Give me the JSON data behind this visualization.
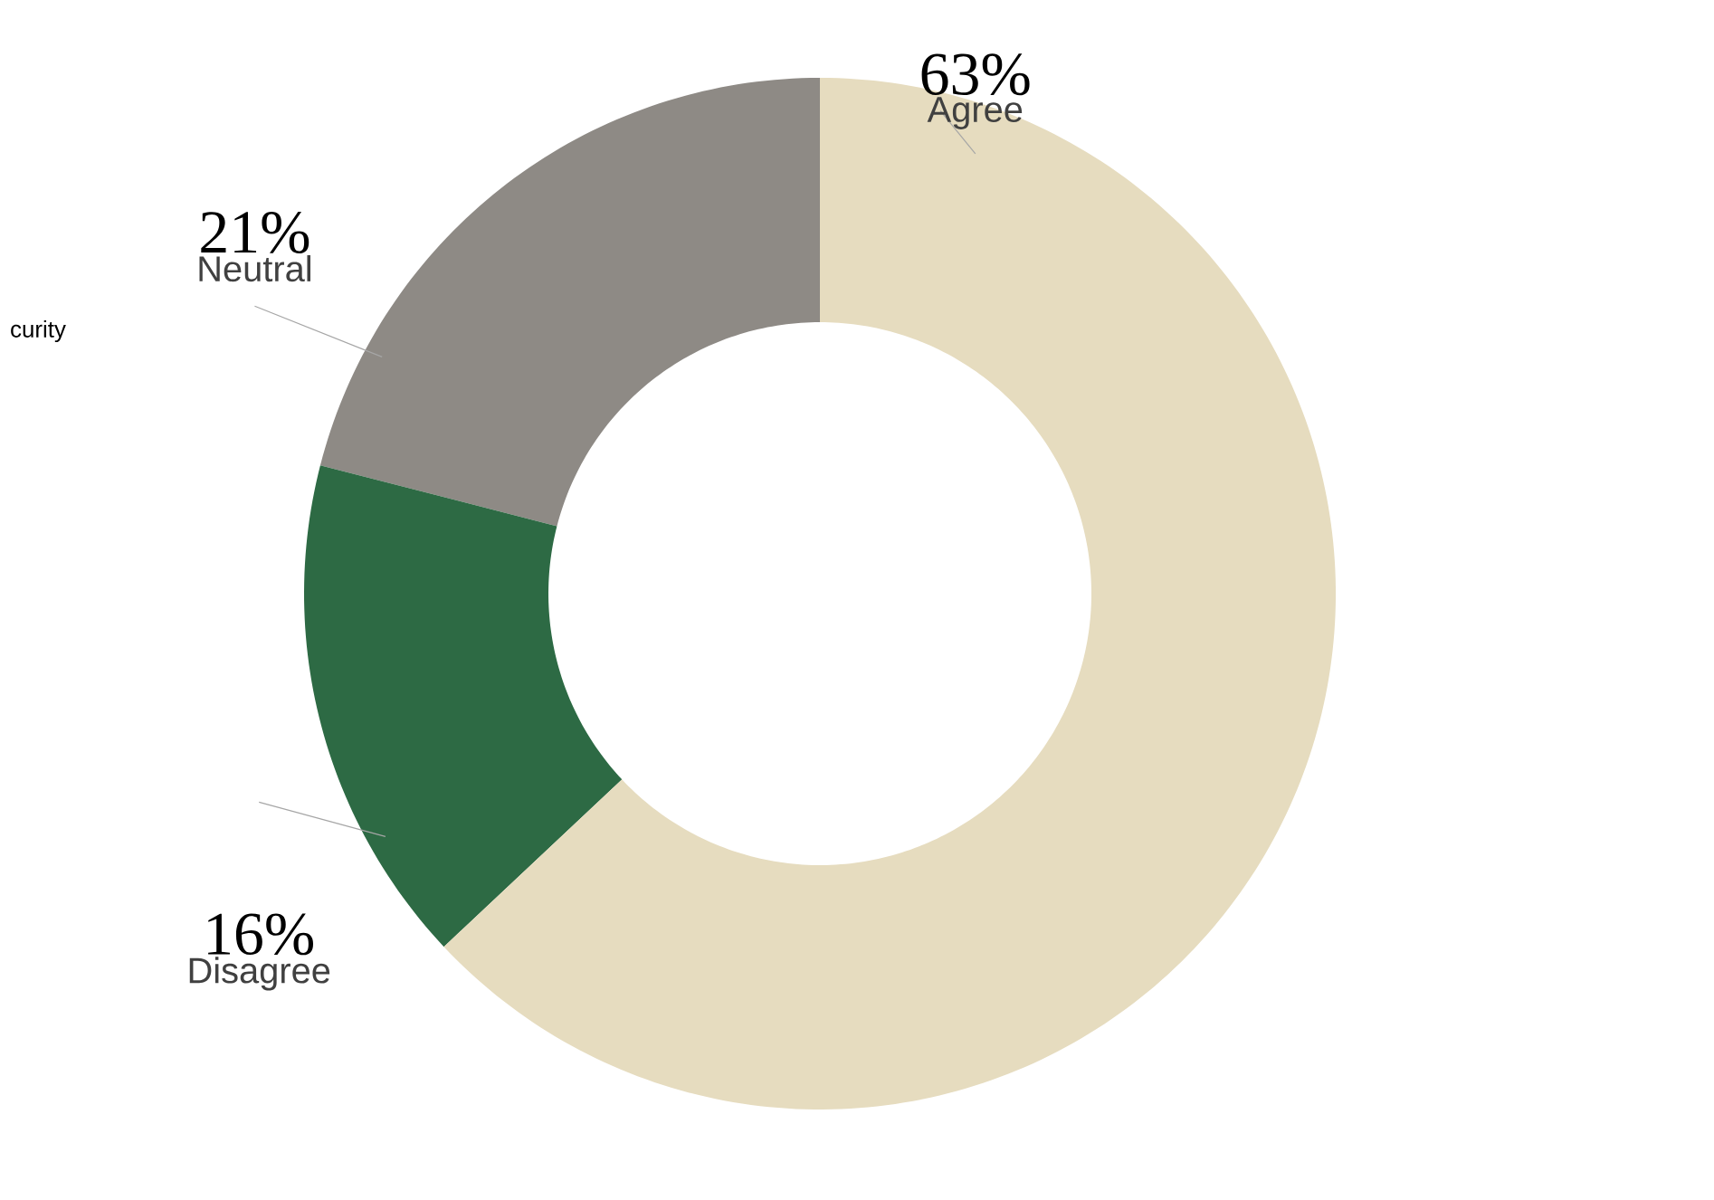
{
  "chart_data": {
    "type": "donut",
    "categories": [
      "Agree",
      "Disagree",
      "Neutral"
    ],
    "values": [
      63,
      16,
      21
    ],
    "value_labels": [
      "63%",
      "16%",
      "21%"
    ],
    "colors": [
      "#e6dcbf",
      "#2d6a44",
      "#8e8a85"
    ],
    "annotations": [
      "curity"
    ]
  }
}
